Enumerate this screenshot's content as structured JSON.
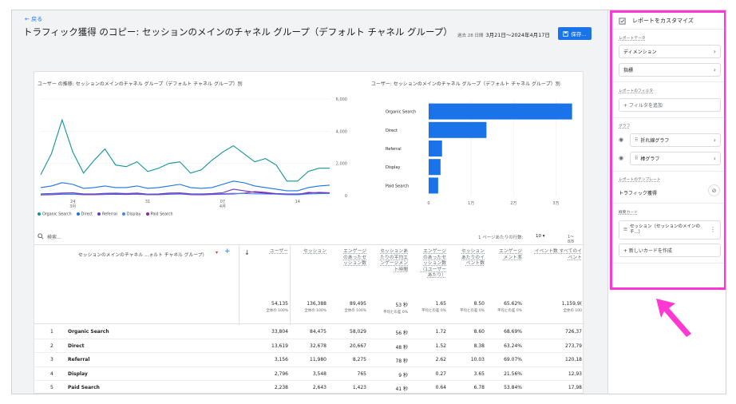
{
  "header": {
    "back_label": "戻る",
    "title": "トラフィック獲得 のコピー: セッションのメインのチャネル グループ（デフォルト チャネル グループ）",
    "date_prefix": "過去 28 日間",
    "date_range": "3月21日～2024年4月17日",
    "save_label": "保存..."
  },
  "line_chart": {
    "title": "ユーザー の推移: セッションのメインのチャネル グループ（デフォルト チャネル グループ）別",
    "y_ticks": [
      "6,000",
      "4,000",
      "2,000",
      "0"
    ],
    "x_ticks": [
      "24",
      "3月",
      "31",
      "07",
      "4月",
      "14"
    ],
    "legend": [
      "Organic Search",
      "Direct",
      "Referral",
      "Display",
      "Paid Search"
    ]
  },
  "bar_chart": {
    "title": "ユーザー: セッションのメインのチャネル グループ（デフォルト チャネル グループ）別",
    "x_ticks": [
      "0",
      "1万",
      "2万",
      "3万"
    ]
  },
  "chart_data": [
    {
      "type": "line",
      "title": "ユーザー の推移: セッションのメインのチャネル グループ（デフォルト チャネル グループ）別",
      "ylim": [
        0,
        6000
      ],
      "x": [
        "3/21",
        "3/22",
        "3/23",
        "3/24",
        "3/25",
        "3/26",
        "3/27",
        "3/28",
        "3/29",
        "3/30",
        "3/31",
        "4/1",
        "4/2",
        "4/3",
        "4/4",
        "4/5",
        "4/6",
        "4/7",
        "4/8",
        "4/9",
        "4/10",
        "4/11",
        "4/12",
        "4/13",
        "4/14",
        "4/15",
        "4/16",
        "4/17"
      ],
      "series": [
        {
          "name": "Organic Search",
          "color": "#12939a",
          "values": [
            1300,
            2600,
            4700,
            2700,
            1400,
            2200,
            2900,
            1900,
            1800,
            2100,
            1500,
            1700,
            2000,
            2100,
            1400,
            1600,
            2200,
            2700,
            3100,
            2600,
            2100,
            2300,
            1900,
            900,
            900,
            1500,
            1700,
            1700
          ]
        },
        {
          "name": "Direct",
          "color": "#1a73e8",
          "values": [
            500,
            600,
            800,
            700,
            450,
            500,
            600,
            500,
            500,
            600,
            450,
            500,
            600,
            700,
            500,
            450,
            500,
            700,
            900,
            800,
            600,
            500,
            400,
            300,
            300,
            500,
            600,
            650
          ]
        },
        {
          "name": "Referral",
          "color": "#673ab7",
          "values": [
            100,
            130,
            160,
            180,
            100,
            100,
            140,
            150,
            130,
            160,
            90,
            100,
            160,
            170,
            110,
            100,
            130,
            180,
            400,
            300,
            200,
            150,
            120,
            100,
            100,
            150,
            200,
            180
          ]
        },
        {
          "name": "Display",
          "color": "#4285f4",
          "values": [
            60,
            80,
            100,
            110,
            90,
            80,
            90,
            110,
            100,
            120,
            70,
            80,
            110,
            120,
            80,
            70,
            100,
            120,
            140,
            130,
            110,
            100,
            90,
            60,
            50,
            100,
            120,
            130
          ]
        },
        {
          "name": "Paid Search",
          "color": "#8e24aa",
          "values": [
            40,
            60,
            80,
            90,
            60,
            60,
            70,
            80,
            70,
            90,
            60,
            60,
            80,
            100,
            60,
            50,
            70,
            90,
            100,
            150,
            250,
            200,
            120,
            80,
            60,
            200,
            160,
            170
          ]
        }
      ]
    },
    {
      "type": "bar",
      "title": "ユーザー: セッションのメインのチャネル グループ（デフォルト チャネル グループ）別",
      "categories": [
        "Organic Search",
        "Direct",
        "Referral",
        "Display",
        "Paid Search"
      ],
      "values": [
        33804,
        13619,
        3156,
        2796,
        2238
      ],
      "xlim": [
        0,
        35000
      ],
      "color": "#1a73e8"
    }
  ],
  "table": {
    "search_placeholder": "検索...",
    "rows_per_page_label": "1 ページあたりの行数:",
    "rows_per_page": "10",
    "pagination": "1～8/8",
    "dimension_header": "セッションのメインのチャネル ...ォルト チャネル グループ）",
    "columns": [
      {
        "label": "ユーザー",
        "total": "54,135",
        "sub": "全体の 100%"
      },
      {
        "label": "セッション",
        "total": "136,388",
        "sub": "全体の 100%"
      },
      {
        "label": "エンゲージのあったセッション数",
        "total": "89,495",
        "sub": "全体の 100%"
      },
      {
        "label": "セッションあたりの平均エンゲージメント時間",
        "total": "53 秒",
        "sub": "平均との差 0%"
      },
      {
        "label": "エンゲージのあったセッション数（1ユーザーあたり）",
        "total": "1.65",
        "sub": "平均との差 0%"
      },
      {
        "label": "セッションあたりのイベント数",
        "total": "8.50",
        "sub": "平均との差 0%"
      },
      {
        "label": "エンゲージメント率",
        "total": "65.62%",
        "sub": "平均との差 0%"
      },
      {
        "label": "イベント数 すべてのイベント",
        "total": "1,159,9(",
        "sub": "全体の 100"
      }
    ],
    "rows": [
      {
        "n": "1",
        "name": "Organic Search",
        "cells": [
          "33,804",
          "84,475",
          "58,029",
          "56 秒",
          "1.72",
          "8.60",
          "68.69%",
          "726,37"
        ]
      },
      {
        "n": "2",
        "name": "Direct",
        "cells": [
          "13,619",
          "32,678",
          "20,667",
          "48 秒",
          "1.52",
          "8.38",
          "63.24%",
          "273,79"
        ]
      },
      {
        "n": "3",
        "name": "Referral",
        "cells": [
          "3,156",
          "11,980",
          "8,275",
          "78 秒",
          "2.62",
          "10.03",
          "69.07%",
          "120,18"
        ]
      },
      {
        "n": "4",
        "name": "Display",
        "cells": [
          "2,796",
          "3,548",
          "765",
          "9 秒",
          "0.27",
          "3.65",
          "21.56%",
          "12,93"
        ]
      },
      {
        "n": "5",
        "name": "Paid Search",
        "cells": [
          "2,238",
          "2,643",
          "1,423",
          "41 秒",
          "0.64",
          "6.78",
          "53.84%",
          "17,98"
        ]
      }
    ]
  },
  "sidebar": {
    "title": "レポートをカスタマイズ",
    "report_data_label": "レポートデータ",
    "dimensions_label": "ディメンション",
    "metrics_label": "指標",
    "report_filter_label": "レポートのフィルタ",
    "add_filter_label": "+ フィルタを追加",
    "graph_label": "グラフ",
    "line_graph_label": "折れ線グラフ",
    "bar_graph_label": "棒グラフ",
    "template_label": "レポートのテンプレート",
    "template_name": "トラフィック獲得",
    "summary_card_label": "概要カード",
    "card_name": "セッション（セッションのメインのチ...）",
    "new_card_label": "+ 新しいカードを作成"
  },
  "colors": {
    "accent": "#1a73e8",
    "highlight": "#ff37d3"
  }
}
